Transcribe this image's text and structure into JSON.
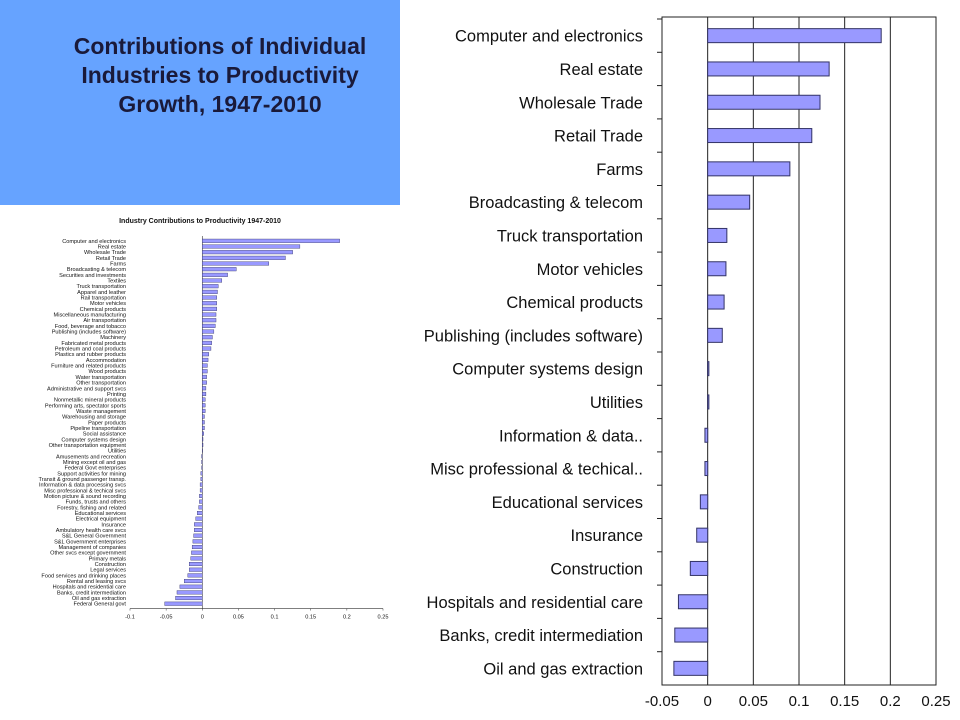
{
  "title": "Contributions of Individual Industries to Productivity Growth, 1947-2010",
  "colors": {
    "panel": "#66a3ff",
    "bar_fill": "#9999ff",
    "bar_stroke": "#333366",
    "title_text": "#1a1a3a"
  },
  "chart_data": [
    {
      "type": "bar",
      "orientation": "horizontal",
      "title": "Industry Contributions to Productivity 1947-2010",
      "xlim": [
        -0.1,
        0.25
      ],
      "xticks": [
        "-0.1",
        "-0.05",
        "0",
        "0.05",
        "0.1",
        "0.15",
        "0.2",
        "0.25"
      ],
      "grid": false,
      "categories": [
        "Computer and electronics",
        "Real estate",
        "Wholesale Trade",
        "Retail Trade",
        "Farms",
        "Broadcasting & telecom",
        "Securities and investments",
        "Textiles",
        "Truck transportation",
        "Apparel and leather",
        "Rail transportation",
        "Motor vehicles",
        "Chemical products",
        "Miscellaneous manufacturing",
        "Air transportation",
        "Food, beverage and tobacco",
        "Publishing (includes software)",
        "Machinery",
        "Fabricated metal products",
        "Petroleum and coal products",
        "Plastics and rubber products",
        "Accommodation",
        "Furniture and related products",
        "Wood products",
        "Water transportation",
        "Other transportation",
        "Administrative and support svcs",
        "Printing",
        "Nonmetallic mineral products",
        "Performing arts, spectator sports",
        "Waste management",
        "Warehousing and storage",
        "Paper products",
        "Pipeline transportation",
        "Social assistance",
        "Computer systems design",
        "Other transportation equipment",
        "Utilities",
        "Amusements and recreation",
        "Mining except oil and gas",
        "Federal Govt enterprises",
        "Support activities for mining",
        "Transit & ground passenger transp.",
        "Information & data processing svcs",
        "Misc professional & techical svcs",
        "Motion picture & sound recording",
        "Funds, trusts and others",
        "Forestry, fishing and related",
        "Educational services",
        "Electrical equipment",
        "Insurance",
        "Ambulatory health care svcs",
        "S&L General Government",
        "S&L Government enterprises",
        "Management of companies",
        "Other svcs except government",
        "Primary metals",
        "Construction",
        "Legal services",
        "Food services and drinking places",
        "Rental and leasing svcs",
        "Hospitals and residential care",
        "Banks, credit intermediation",
        "Oil and gas extraction",
        "Federal General govt"
      ],
      "values": [
        0.19,
        0.135,
        0.125,
        0.115,
        0.092,
        0.047,
        0.035,
        0.027,
        0.022,
        0.021,
        0.02,
        0.02,
        0.02,
        0.019,
        0.019,
        0.018,
        0.016,
        0.014,
        0.013,
        0.012,
        0.009,
        0.008,
        0.007,
        0.007,
        0.006,
        0.006,
        0.005,
        0.005,
        0.004,
        0.004,
        0.004,
        0.003,
        0.003,
        0.003,
        0.002,
        0.001,
        0.001,
        0.0,
        -0.001,
        -0.001,
        -0.001,
        -0.002,
        -0.002,
        -0.003,
        -0.003,
        -0.004,
        -0.004,
        -0.005,
        -0.007,
        -0.009,
        -0.011,
        -0.011,
        -0.012,
        -0.013,
        -0.014,
        -0.015,
        -0.016,
        -0.018,
        -0.018,
        -0.02,
        -0.025,
        -0.031,
        -0.035,
        -0.037,
        -0.052
      ]
    },
    {
      "type": "bar",
      "orientation": "horizontal",
      "title": "",
      "xlim": [
        -0.05,
        0.25
      ],
      "xticks": [
        "-0.05",
        "0",
        "0.05",
        "0.1",
        "0.15",
        "0.2",
        "0.25"
      ],
      "grid": true,
      "categories": [
        "Computer and electronics",
        "Real estate",
        "Wholesale Trade",
        "Retail Trade",
        "Farms",
        "Broadcasting & telecom",
        "Truck transportation",
        "Motor vehicles",
        "Chemical products",
        "Publishing (includes software)",
        "Computer systems design",
        "Utilities",
        "Information & data..",
        "Misc professional & techical..",
        "Educational services",
        "Insurance",
        "Construction",
        "Hospitals and residential care",
        "Banks, credit intermediation",
        "Oil and gas extraction"
      ],
      "values": [
        0.19,
        0.133,
        0.123,
        0.114,
        0.09,
        0.046,
        0.021,
        0.02,
        0.018,
        0.016,
        0.001,
        0.0,
        -0.003,
        -0.003,
        -0.008,
        -0.012,
        -0.019,
        -0.032,
        -0.036,
        -0.037
      ]
    }
  ]
}
